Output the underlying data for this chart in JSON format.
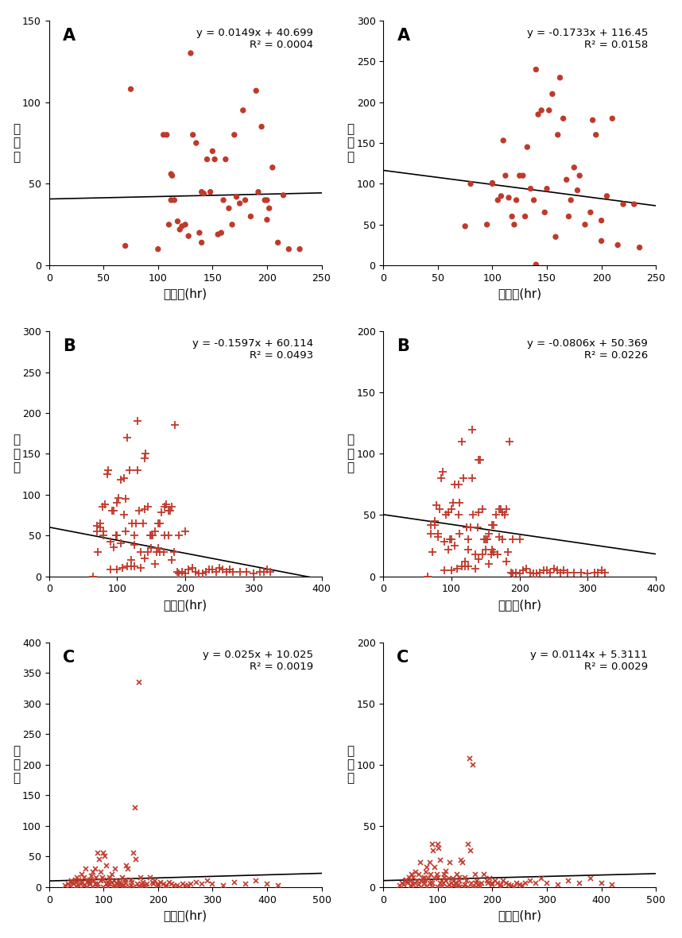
{
  "panels": [
    {
      "label": "A",
      "col": 0,
      "row": 0,
      "ylabel_chars": [
        "발",
        "생",
        "수"
      ],
      "xlabel": "일조합(hr)",
      "xlim": [
        0,
        250
      ],
      "ylim": [
        0,
        150
      ],
      "xticks": [
        0,
        50,
        100,
        150,
        200,
        250
      ],
      "yticks": [
        0,
        50,
        100,
        150
      ],
      "marker": "o",
      "eq": "y = 0.0149x + 40.699",
      "r2": "R² = 0.0004",
      "slope": 0.0149,
      "intercept": 40.699,
      "x_data": [
        70,
        75,
        100,
        105,
        108,
        110,
        112,
        112,
        113,
        115,
        118,
        120,
        122,
        125,
        128,
        130,
        132,
        135,
        138,
        140,
        140,
        142,
        145,
        148,
        150,
        152,
        155,
        158,
        160,
        162,
        165,
        168,
        170,
        172,
        175,
        178,
        180,
        185,
        190,
        192,
        195,
        198,
        200,
        200,
        202,
        205,
        210,
        215,
        220,
        230
      ],
      "y_data": [
        12,
        108,
        10,
        80,
        80,
        25,
        40,
        56,
        55,
        40,
        27,
        22,
        24,
        25,
        18,
        130,
        80,
        75,
        20,
        14,
        45,
        44,
        65,
        45,
        70,
        65,
        19,
        20,
        40,
        65,
        35,
        25,
        80,
        42,
        38,
        95,
        40,
        30,
        107,
        45,
        85,
        40,
        40,
        28,
        35,
        60,
        14,
        43,
        10,
        10
      ]
    },
    {
      "label": "A",
      "col": 1,
      "row": 0,
      "ylabel_chars": [
        "매",
        "균",
        "율"
      ],
      "xlabel": "일조합(hr)",
      "xlim": [
        0,
        250
      ],
      "ylim": [
        0,
        300
      ],
      "xticks": [
        0,
        50,
        100,
        150,
        200,
        250
      ],
      "yticks": [
        0,
        50,
        100,
        150,
        200,
        250,
        300
      ],
      "marker": "o",
      "eq": "y = -0.1733x + 116.45",
      "r2": "R² = 0.0158",
      "slope": -0.1733,
      "intercept": 116.45,
      "x_data": [
        75,
        80,
        95,
        100,
        100,
        105,
        108,
        110,
        112,
        115,
        118,
        120,
        122,
        125,
        128,
        130,
        132,
        135,
        138,
        140,
        140,
        142,
        145,
        148,
        150,
        152,
        155,
        158,
        160,
        162,
        165,
        168,
        170,
        172,
        175,
        178,
        180,
        185,
        190,
        192,
        195,
        200,
        200,
        205,
        210,
        215,
        220,
        230,
        235
      ],
      "y_data": [
        48,
        100,
        50,
        100,
        101,
        80,
        85,
        153,
        110,
        83,
        60,
        50,
        80,
        110,
        110,
        60,
        145,
        94,
        80,
        240,
        1,
        185,
        190,
        65,
        94,
        190,
        210,
        35,
        160,
        230,
        180,
        105,
        60,
        80,
        120,
        92,
        110,
        50,
        65,
        178,
        160,
        55,
        30,
        85,
        180,
        25,
        75,
        75,
        22
      ]
    },
    {
      "label": "B",
      "col": 0,
      "row": 1,
      "ylabel_chars": [
        "발",
        "생",
        "수"
      ],
      "xlabel": "일조합(hr)",
      "xlim": [
        0,
        400
      ],
      "ylim": [
        0,
        300
      ],
      "xticks": [
        0,
        100,
        200,
        300,
        400
      ],
      "yticks": [
        0,
        50,
        100,
        150,
        200,
        250,
        300
      ],
      "marker": "+",
      "eq": "y = -0.1597x + 60.114",
      "r2": "R² = 0.0493",
      "slope": -0.1597,
      "intercept": 60.114,
      "x_data": [
        65,
        70,
        70,
        72,
        75,
        75,
        78,
        80,
        80,
        82,
        85,
        87,
        90,
        90,
        92,
        95,
        95,
        98,
        100,
        100,
        100,
        102,
        105,
        105,
        108,
        110,
        110,
        112,
        112,
        115,
        115,
        118,
        120,
        120,
        122,
        125,
        125,
        125,
        128,
        130,
        130,
        132,
        135,
        135,
        138,
        140,
        140,
        140,
        142,
        145,
        145,
        148,
        150,
        150,
        152,
        155,
        155,
        158,
        160,
        160,
        162,
        162,
        165,
        168,
        170,
        170,
        172,
        175,
        175,
        178,
        180,
        180,
        183,
        185,
        188,
        190,
        190,
        195,
        200,
        200,
        205,
        210,
        215,
        220,
        225,
        230,
        235,
        240,
        245,
        250,
        255,
        260,
        265,
        270,
        280,
        290,
        300,
        310,
        315,
        320,
        325
      ],
      "y_data": [
        0,
        62,
        55,
        30,
        60,
        65,
        85,
        55,
        50,
        88,
        125,
        130,
        8,
        42,
        80,
        36,
        80,
        50,
        8,
        90,
        50,
        96,
        118,
        40,
        10,
        75,
        120,
        55,
        95,
        170,
        12,
        130,
        20,
        12,
        65,
        12,
        38,
        50,
        65,
        190,
        130,
        80,
        30,
        10,
        65,
        145,
        22,
        82,
        150,
        85,
        30,
        50,
        35,
        50,
        50,
        15,
        55,
        30,
        35,
        65,
        30,
        65,
        78,
        30,
        50,
        85,
        88,
        50,
        80,
        80,
        20,
        85,
        30,
        185,
        5,
        3,
        50,
        5,
        3,
        55,
        8,
        10,
        5,
        3,
        3,
        5,
        8,
        8,
        5,
        10,
        8,
        5,
        8,
        5,
        5,
        5,
        3,
        5,
        5,
        8,
        5
      ]
    },
    {
      "label": "B",
      "col": 1,
      "row": 1,
      "ylabel_chars": [
        "매",
        "균",
        "율"
      ],
      "xlabel": "일조합(hr)",
      "xlim": [
        0,
        400
      ],
      "ylim": [
        0,
        200
      ],
      "xticks": [
        0,
        100,
        200,
        300,
        400
      ],
      "yticks": [
        0,
        50,
        100,
        150,
        200
      ],
      "marker": "+",
      "eq": "y = -0.0806x + 50.369",
      "r2": "R² = 0.0226",
      "slope": -0.0806,
      "intercept": 50.369,
      "x_data": [
        65,
        70,
        70,
        72,
        75,
        75,
        78,
        80,
        80,
        82,
        85,
        87,
        90,
        90,
        92,
        95,
        95,
        98,
        100,
        100,
        100,
        102,
        105,
        105,
        108,
        110,
        110,
        112,
        112,
        115,
        115,
        118,
        120,
        120,
        122,
        125,
        125,
        125,
        128,
        130,
        130,
        132,
        135,
        135,
        138,
        140,
        140,
        140,
        142,
        145,
        145,
        148,
        150,
        150,
        152,
        155,
        155,
        158,
        160,
        160,
        162,
        162,
        165,
        168,
        170,
        170,
        172,
        175,
        175,
        178,
        180,
        180,
        183,
        185,
        188,
        190,
        190,
        195,
        200,
        200,
        205,
        210,
        215,
        220,
        225,
        230,
        235,
        240,
        245,
        250,
        255,
        260,
        265,
        270,
        280,
        290,
        300,
        310,
        315,
        320,
        325
      ],
      "y_data": [
        0,
        42,
        35,
        20,
        42,
        45,
        58,
        35,
        32,
        55,
        80,
        85,
        5,
        28,
        50,
        22,
        52,
        30,
        5,
        55,
        30,
        60,
        75,
        25,
        6,
        50,
        75,
        35,
        60,
        110,
        8,
        80,
        12,
        8,
        40,
        8,
        22,
        30,
        40,
        120,
        80,
        50,
        18,
        6,
        40,
        95,
        14,
        52,
        95,
        55,
        18,
        30,
        22,
        30,
        30,
        10,
        35,
        18,
        22,
        42,
        20,
        42,
        50,
        18,
        32,
        55,
        55,
        30,
        52,
        50,
        12,
        55,
        20,
        110,
        3,
        2,
        30,
        3,
        2,
        30,
        5,
        6,
        3,
        2,
        2,
        3,
        5,
        5,
        3,
        6,
        5,
        3,
        5,
        3,
        3,
        3,
        2,
        3,
        3,
        5,
        3
      ]
    },
    {
      "label": "C",
      "col": 0,
      "row": 2,
      "ylabel_chars": [
        "발",
        "생",
        "수"
      ],
      "xlabel": "일조합(hr)",
      "xlim": [
        0,
        500
      ],
      "ylim": [
        0,
        400
      ],
      "xticks": [
        0,
        100,
        200,
        300,
        400,
        500
      ],
      "yticks": [
        0,
        50,
        100,
        150,
        200,
        250,
        300,
        350,
        400
      ],
      "marker": "x",
      "eq": "y = 0.025x + 10.025",
      "r2": "R² = 0.0019",
      "slope": 0.025,
      "intercept": 10.025,
      "x_data": [
        30,
        35,
        38,
        40,
        42,
        45,
        48,
        50,
        50,
        52,
        55,
        55,
        58,
        60,
        62,
        65,
        65,
        68,
        70,
        70,
        72,
        75,
        75,
        75,
        78,
        80,
        80,
        82,
        85,
        85,
        87,
        90,
        90,
        90,
        92,
        95,
        95,
        98,
        100,
        100,
        100,
        102,
        105,
        105,
        108,
        108,
        110,
        112,
        112,
        115,
        115,
        118,
        120,
        120,
        122,
        125,
        125,
        128,
        130,
        130,
        132,
        135,
        135,
        138,
        140,
        140,
        140,
        142,
        145,
        148,
        150,
        150,
        152,
        155,
        155,
        158,
        160,
        162,
        165,
        165,
        168,
        170,
        170,
        172,
        175,
        178,
        180,
        185,
        190,
        192,
        195,
        200,
        200,
        205,
        210,
        215,
        215,
        220,
        225,
        230,
        235,
        240,
        245,
        250,
        255,
        260,
        270,
        280,
        290,
        300,
        320,
        340,
        360,
        380,
        400,
        420
      ],
      "y_data": [
        2,
        5,
        3,
        8,
        10,
        5,
        12,
        8,
        1,
        15,
        3,
        12,
        5,
        20,
        8,
        15,
        3,
        30,
        8,
        0,
        10,
        5,
        12,
        8,
        18,
        25,
        0,
        10,
        5,
        30,
        15,
        5,
        55,
        0,
        45,
        25,
        10,
        15,
        55,
        12,
        0,
        50,
        5,
        35,
        8,
        0,
        5,
        15,
        12,
        20,
        8,
        0,
        3,
        10,
        30,
        5,
        0,
        10,
        2,
        8,
        5,
        0,
        15,
        3,
        12,
        8,
        0,
        35,
        30,
        0,
        3,
        12,
        8,
        55,
        0,
        130,
        45,
        5,
        335,
        0,
        15,
        5,
        0,
        8,
        3,
        0,
        5,
        15,
        8,
        5,
        10,
        5,
        3,
        8,
        5,
        3,
        0,
        8,
        5,
        3,
        2,
        0,
        5,
        3,
        2,
        5,
        8,
        5,
        10,
        5,
        3,
        8,
        5,
        10,
        5,
        3
      ]
    },
    {
      "label": "C",
      "col": 1,
      "row": 2,
      "ylabel_chars": [
        "매",
        "균",
        "율"
      ],
      "xlabel": "일조합(hr)",
      "xlim": [
        0,
        500
      ],
      "ylim": [
        0,
        200
      ],
      "xticks": [
        0,
        100,
        200,
        300,
        400,
        500
      ],
      "yticks": [
        0,
        50,
        100,
        150,
        200
      ],
      "marker": "x",
      "eq": "y = 0.0114x + 5.3111",
      "r2": "R² = 0.0029",
      "slope": 0.0114,
      "intercept": 5.3111,
      "x_data": [
        30,
        35,
        38,
        40,
        42,
        45,
        48,
        50,
        50,
        52,
        55,
        55,
        58,
        60,
        62,
        65,
        65,
        68,
        70,
        70,
        72,
        75,
        75,
        75,
        78,
        80,
        80,
        82,
        85,
        85,
        87,
        90,
        90,
        90,
        92,
        95,
        95,
        98,
        100,
        100,
        100,
        102,
        105,
        105,
        108,
        108,
        110,
        112,
        112,
        115,
        115,
        118,
        120,
        120,
        122,
        125,
        125,
        128,
        130,
        130,
        132,
        135,
        135,
        138,
        140,
        140,
        140,
        142,
        145,
        148,
        150,
        150,
        152,
        155,
        155,
        158,
        160,
        162,
        165,
        165,
        168,
        170,
        170,
        172,
        175,
        178,
        180,
        185,
        190,
        192,
        195,
        200,
        200,
        205,
        210,
        215,
        215,
        220,
        225,
        230,
        235,
        240,
        245,
        250,
        255,
        260,
        270,
        280,
        290,
        300,
        320,
        340,
        360,
        380,
        400,
        420
      ],
      "y_data": [
        1,
        3,
        2,
        5,
        6,
        3,
        8,
        5,
        1,
        10,
        2,
        8,
        3,
        12,
        5,
        10,
        2,
        20,
        5,
        0,
        7,
        3,
        8,
        5,
        12,
        16,
        0,
        7,
        3,
        20,
        10,
        3,
        35,
        0,
        30,
        16,
        7,
        10,
        35,
        8,
        0,
        32,
        3,
        22,
        5,
        0,
        3,
        10,
        8,
        13,
        5,
        0,
        2,
        7,
        20,
        3,
        0,
        7,
        1,
        5,
        3,
        0,
        10,
        2,
        8,
        5,
        0,
        22,
        20,
        0,
        2,
        8,
        5,
        35,
        0,
        105,
        30,
        3,
        100,
        0,
        10,
        3,
        0,
        5,
        2,
        0,
        3,
        10,
        5,
        3,
        7,
        3,
        2,
        5,
        3,
        2,
        0,
        5,
        3,
        2,
        1,
        0,
        3,
        2,
        1,
        3,
        5,
        3,
        7,
        3,
        2,
        5,
        3,
        7,
        3,
        2
      ]
    }
  ],
  "marker_color": "#C0392B",
  "line_color": "black"
}
